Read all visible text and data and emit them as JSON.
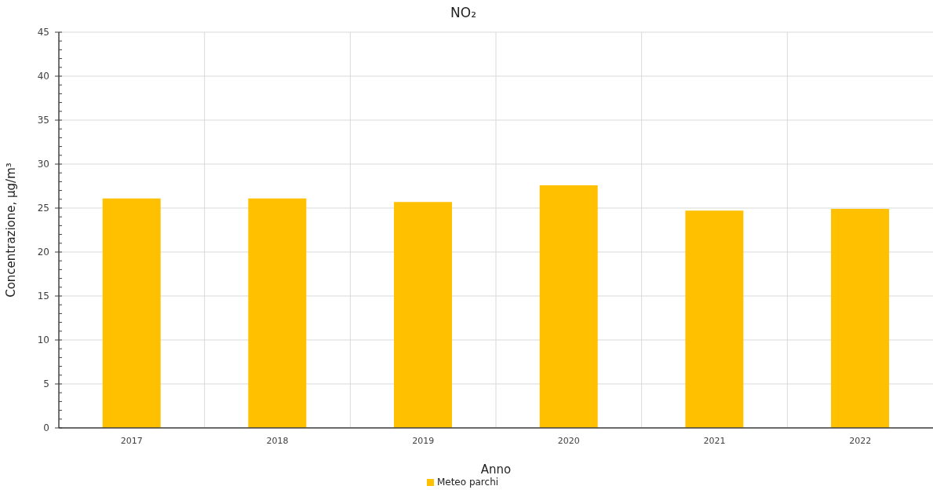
{
  "chart_data": {
    "type": "bar",
    "title": "NO₂",
    "xlabel": "Anno",
    "ylabel": "Concentrazione, μg/m³",
    "categories": [
      "2017",
      "2018",
      "2019",
      "2020",
      "2021",
      "2022"
    ],
    "series": [
      {
        "name": "Meteo parchi",
        "color": "#ffc000",
        "values": [
          26.1,
          26.1,
          25.7,
          27.6,
          24.7,
          24.9
        ]
      }
    ],
    "ylim": [
      0,
      45
    ],
    "yticks": [
      0,
      {
        "value": 1,
        "label": null
      },
      {
        "value": 2,
        "label": null
      },
      {
        "value": 3,
        "label": null
      },
      {
        "value": 4,
        "label": null
      },
      5,
      {
        "value": 6,
        "label": null
      },
      {
        "value": 7,
        "label": null
      },
      {
        "value": 8,
        "label": null
      },
      {
        "value": 9,
        "label": null
      },
      10,
      {
        "value": 11,
        "label": null
      },
      {
        "value": 12,
        "label": null
      },
      {
        "value": 13,
        "label": null
      },
      {
        "value": 14,
        "label": null
      },
      15,
      {
        "value": 16,
        "label": null
      },
      {
        "value": 17,
        "label": null
      },
      {
        "value": 18,
        "label": null
      },
      {
        "value": 19,
        "label": null
      },
      20,
      {
        "value": 21,
        "label": null
      },
      {
        "value": 22,
        "label": null
      },
      {
        "value": 23,
        "label": null
      },
      {
        "value": 24,
        "label": null
      },
      25,
      {
        "value": 26,
        "label": null
      },
      {
        "value": 27,
        "label": null
      },
      {
        "value": 28,
        "label": null
      },
      {
        "value": 29,
        "label": null
      },
      30,
      {
        "value": 31,
        "label": null
      },
      {
        "value": 32,
        "label": null
      },
      {
        "value": 33,
        "label": null
      },
      {
        "value": 34,
        "label": null
      },
      35,
      {
        "value": 36,
        "label": null
      },
      {
        "value": 37,
        "label": null
      },
      {
        "value": 38,
        "label": null
      },
      {
        "value": 39,
        "label": null
      },
      40,
      {
        "value": 41,
        "label": null
      },
      {
        "value": 42,
        "label": null
      },
      {
        "value": 43,
        "label": null
      },
      {
        "value": 44,
        "label": null
      },
      45
    ],
    "grid": true,
    "legend": "bottom"
  }
}
